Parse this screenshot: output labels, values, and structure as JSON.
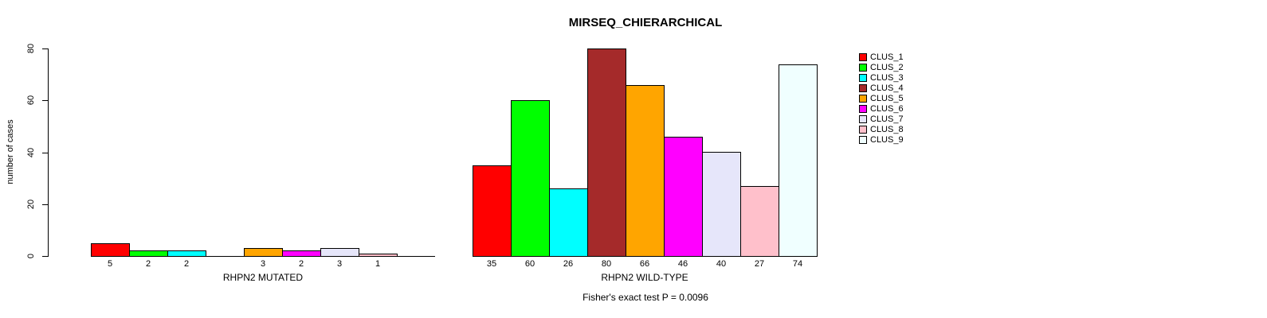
{
  "chart_data": {
    "type": "bar",
    "title": "MIRSEQ_CHIERARCHICAL",
    "ylabel": "number of cases",
    "footnote": "Fisher's exact test P = 0.0096",
    "ylim": [
      0,
      80
    ],
    "yticks": [
      0,
      20,
      40,
      60,
      80
    ],
    "grid": "off",
    "legend_position": "right",
    "legend": [
      "CLUS_1",
      "CLUS_2",
      "CLUS_3",
      "CLUS_4",
      "CLUS_5",
      "CLUS_6",
      "CLUS_7",
      "CLUS_8",
      "CLUS_9"
    ],
    "colors": [
      "#FF0000",
      "#00FF00",
      "#00FFFF",
      "#A52A2A",
      "#FFA500",
      "#FF00FF",
      "#E6E6FA",
      "#FFC0CB",
      "#F0FFFF"
    ],
    "groups": [
      {
        "label": "RHPN2 MUTATED",
        "values": [
          5,
          2,
          2,
          0,
          3,
          2,
          3,
          1,
          0
        ]
      },
      {
        "label": "RHPN2 WILD-TYPE",
        "values": [
          35,
          60,
          26,
          80,
          66,
          46,
          40,
          27,
          74
        ]
      }
    ]
  }
}
